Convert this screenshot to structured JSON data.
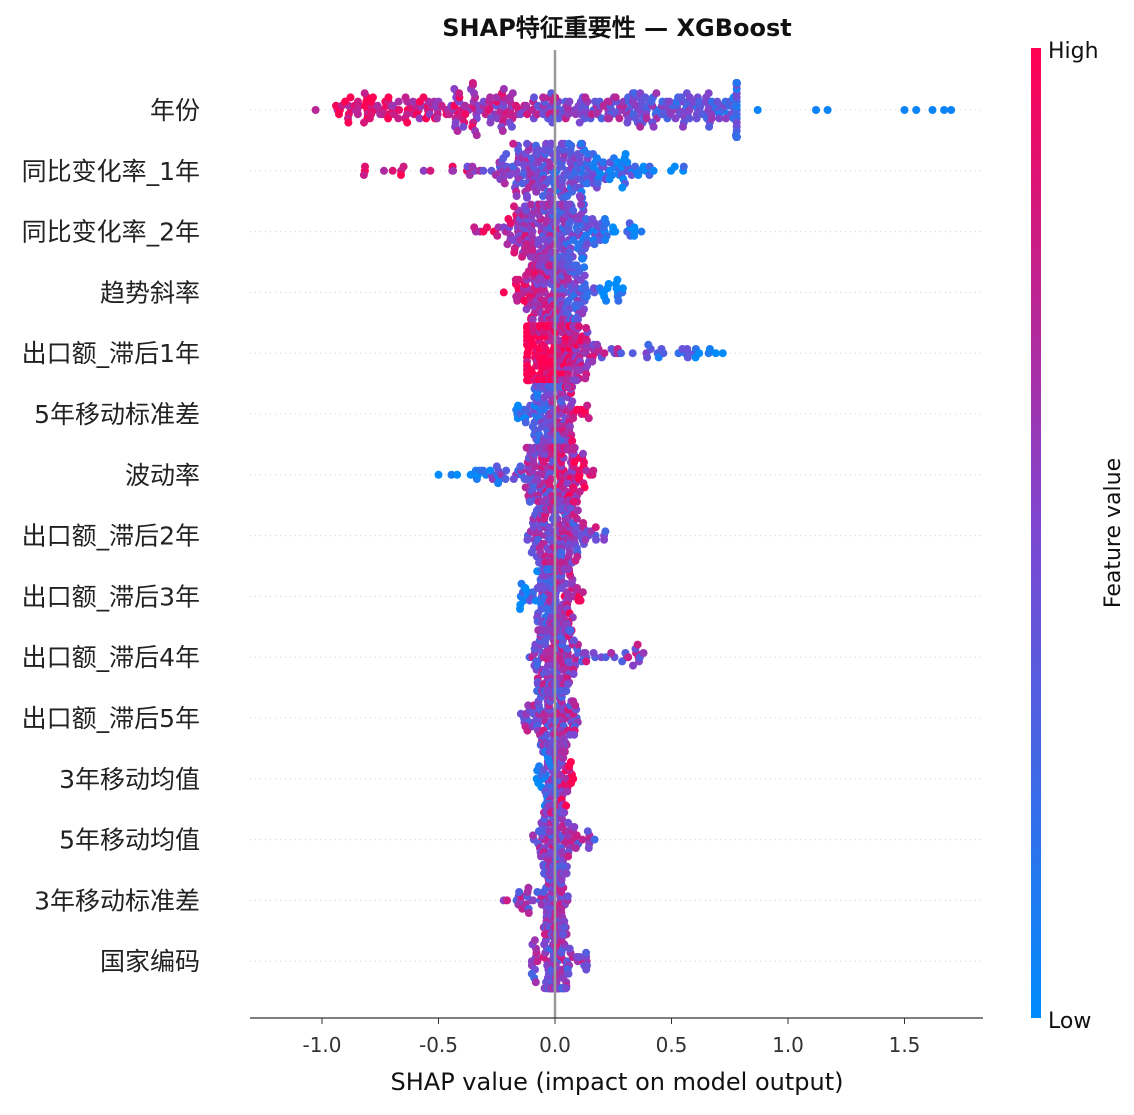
{
  "chart_data": {
    "type": "scatter",
    "subtype": "shap-beeswarm",
    "title": "SHAP特征重要性 — XGBoost",
    "xlabel": "SHAP value (impact on model output)",
    "ylabel": "",
    "xlim": [
      -1.3,
      1.85
    ],
    "xticks": [
      -1.0,
      -0.5,
      0.0,
      0.5,
      1.0,
      1.5
    ],
    "xtick_labels": [
      "-1.0",
      "-0.5",
      "0.0",
      "0.5",
      "1.0",
      "1.5"
    ],
    "zero_line": 0.0,
    "grid": false,
    "colorbar": {
      "label": "Feature value",
      "high_label": "High",
      "low_label": "Low",
      "low_color": "#008bfb",
      "mid_color": "#7c47d1",
      "high_color": "#ff0052"
    },
    "features": [
      {
        "name": "年份",
        "x_min": -1.18,
        "x_max": 1.7,
        "spread": 0.45,
        "outliers": [
          0.87,
          1.12,
          1.17,
          1.5,
          1.55,
          1.62,
          1.67,
          1.7
        ],
        "color_trend": -1
      },
      {
        "name": "同比变化率_1年",
        "x_min": -0.82,
        "x_max": 0.57,
        "spread": 0.3,
        "outliers": [
          -0.82
        ],
        "color_trend": -1
      },
      {
        "name": "同比变化率_2年",
        "x_min": -0.45,
        "x_max": 0.42,
        "spread": 0.2,
        "outliers": [],
        "color_trend": -1
      },
      {
        "name": "趋势斜率",
        "x_min": -0.22,
        "x_max": 0.3,
        "spread": 0.12,
        "outliers": [],
        "color_trend": -1
      },
      {
        "name": "出口额_滞后1年",
        "x_min": -0.12,
        "x_max": 0.72,
        "spread": 0.15,
        "outliers": [
          0.53,
          0.57,
          0.69,
          0.72
        ],
        "color_trend": -1
      },
      {
        "name": "5年移动标准差",
        "x_min": -0.17,
        "x_max": 0.17,
        "spread": 0.08,
        "outliers": [],
        "color_trend": 1
      },
      {
        "name": "波动率",
        "x_min": -0.5,
        "x_max": 0.25,
        "spread": 0.12,
        "outliers": [
          -0.5,
          -0.42
        ],
        "color_trend": 1
      },
      {
        "name": "出口额_滞后2年",
        "x_min": -0.12,
        "x_max": 0.22,
        "spread": 0.08,
        "outliers": [],
        "color_trend": 0
      },
      {
        "name": "出口额_滞后3年",
        "x_min": -0.15,
        "x_max": 0.12,
        "spread": 0.06,
        "outliers": [
          -0.15
        ],
        "color_trend": 1
      },
      {
        "name": "出口额_滞后4年",
        "x_min": -0.14,
        "x_max": 0.38,
        "spread": 0.08,
        "outliers": [
          0.38
        ],
        "color_trend": 0
      },
      {
        "name": "出口额_滞后5年",
        "x_min": -0.15,
        "x_max": 0.1,
        "spread": 0.05,
        "outliers": [],
        "color_trend": 0
      },
      {
        "name": "3年移动均值",
        "x_min": -0.08,
        "x_max": 0.08,
        "spread": 0.04,
        "outliers": [],
        "color_trend": 1
      },
      {
        "name": "5年移动均值",
        "x_min": -0.1,
        "x_max": 0.17,
        "spread": 0.05,
        "outliers": [
          0.17
        ],
        "color_trend": 0
      },
      {
        "name": "3年移动标准差",
        "x_min": -0.22,
        "x_max": 0.08,
        "spread": 0.04,
        "outliers": [
          -0.22,
          -0.14
        ],
        "color_trend": 0
      },
      {
        "name": "国家编码",
        "x_min": -0.1,
        "x_max": 0.14,
        "spread": 0.04,
        "outliers": [],
        "color_trend": 0
      }
    ]
  }
}
